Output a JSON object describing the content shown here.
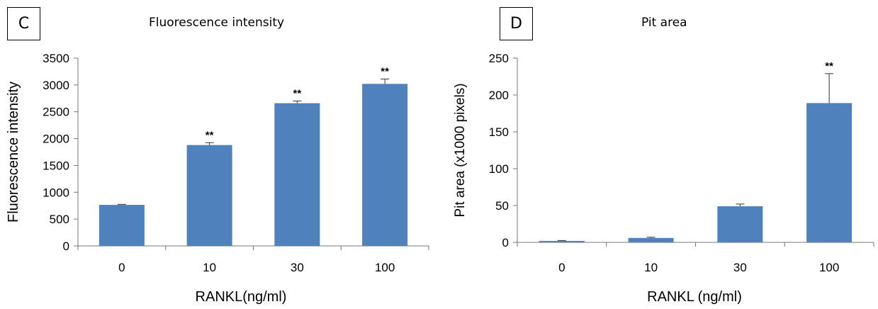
{
  "panels": {
    "c": {
      "letter": "C",
      "title": "Fluorescence intensity"
    },
    "d": {
      "letter": "D",
      "title": "Pit area"
    }
  },
  "chart_data": [
    {
      "type": "bar",
      "title": "Fluorescence intensity",
      "xlabel": "RANKL(ng/ml)",
      "ylabel": "Fluorescence intensity",
      "categories": [
        "0",
        "10",
        "30",
        "100"
      ],
      "values": [
        765,
        1880,
        2660,
        3020
      ],
      "errors": [
        10,
        45,
        40,
        90
      ],
      "annotations": [
        "",
        "**",
        "**",
        "**"
      ],
      "ylim": [
        0,
        3500
      ],
      "yticks": [
        0,
        500,
        1000,
        1500,
        2000,
        2500,
        3000,
        3500
      ],
      "bar_color": "#4f81bd",
      "grid": false
    },
    {
      "type": "bar",
      "title": "Pit area",
      "xlabel": "RANKL (ng/ml)",
      "ylabel": "Pit area (x1000 pixels)",
      "categories": [
        "0",
        "10",
        "30",
        "100"
      ],
      "values": [
        2,
        6,
        49,
        189
      ],
      "errors": [
        0.5,
        1,
        3,
        40
      ],
      "annotations": [
        "",
        "",
        "",
        "**"
      ],
      "ylim": [
        0,
        250
      ],
      "yticks": [
        0,
        50,
        100,
        150,
        200,
        250
      ],
      "bar_color": "#4f81bd",
      "grid": false
    }
  ]
}
